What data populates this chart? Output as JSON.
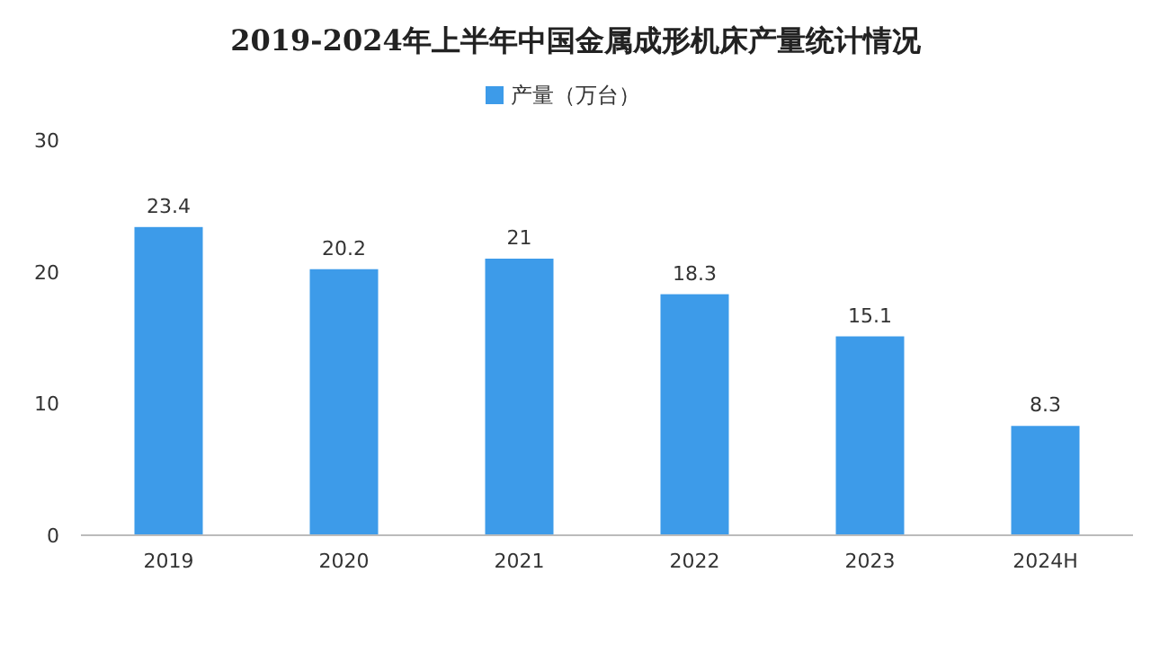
{
  "chart_data": {
    "type": "bar",
    "title": "2019-2024年上半年中国金属成形机床产量统计情况",
    "categories": [
      "2019",
      "2020",
      "2021",
      "2022",
      "2023",
      "2024H"
    ],
    "series": [
      {
        "name": "产量（万台）",
        "color": "#3d9be9",
        "values": [
          23.4,
          20.2,
          21,
          18.3,
          15.1,
          8.3
        ]
      }
    ],
    "data_labels": true,
    "legend": "top",
    "ylim": [
      0,
      30
    ],
    "yticks": [
      0,
      10,
      20,
      30
    ]
  }
}
